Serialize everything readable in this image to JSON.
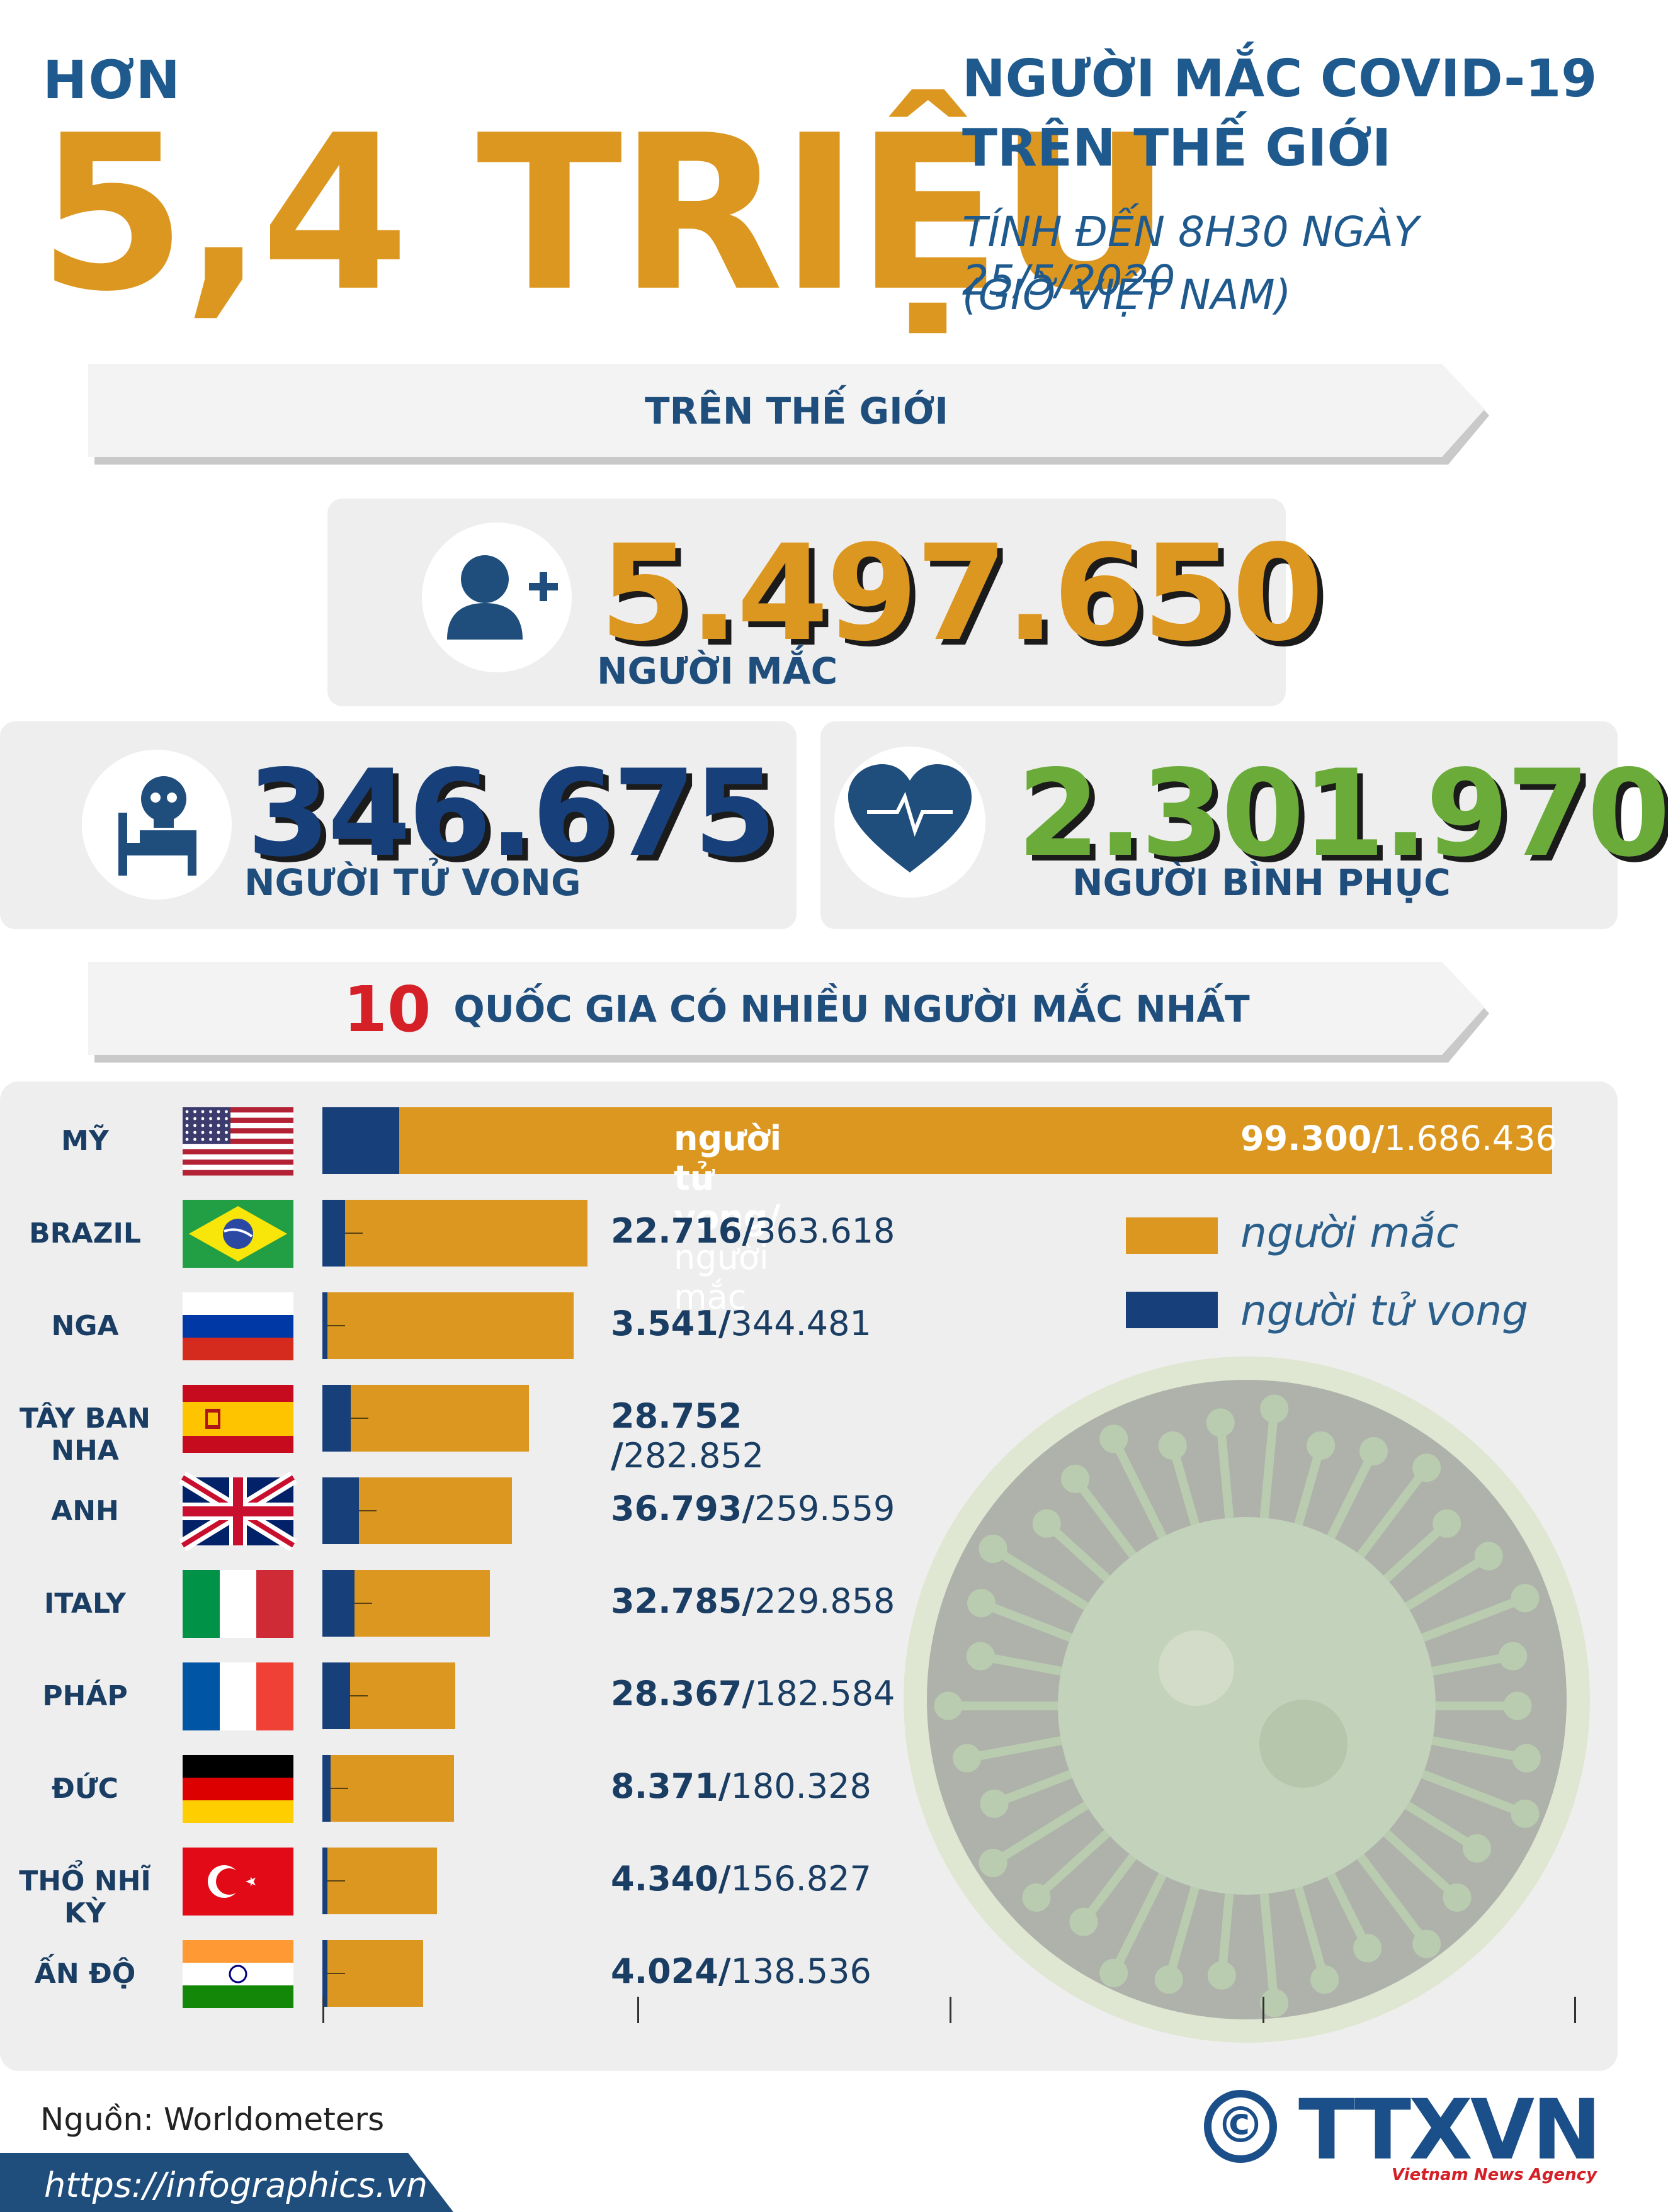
{
  "header": {
    "prefix": "HƠN",
    "big_number": "5,4 TRIỆU",
    "headline_line1": "NGƯỜI MẮC COVID-19",
    "headline_line2": "TRÊN THẾ GIỚI",
    "date_line1": "TÍNH ĐẾN 8H30 NGÀY 25/5/2020",
    "date_line2": "(GIỜ VIỆT NAM)"
  },
  "world_banner": {
    "label": "TRÊN THẾ GIỚI"
  },
  "stats": {
    "cases": {
      "value": "5.497.650",
      "label": "NGƯỜI MẮC",
      "color": "#dc9720"
    },
    "deaths": {
      "value": "346.675",
      "label": "NGƯỜI TỬ VONG",
      "color": "#173f7a"
    },
    "recovered": {
      "value": "2.301.970",
      "label": "NGƯỜI BÌNH PHỤC",
      "color": "#6aab3a"
    }
  },
  "top_banner": {
    "number": "10",
    "label": "QUỐC GIA CÓ NHIỀU NGƯỜI MẮC NHẤT"
  },
  "chart_data": {
    "type": "bar",
    "orientation": "horizontal",
    "categories": [
      "MỸ",
      "BRAZIL",
      "NGA",
      "TÂY BAN NHA",
      "ANH",
      "ITALY",
      "PHÁP",
      "ĐỨC",
      "THỔ NHĨ KỲ",
      "ẤN ĐỘ"
    ],
    "series": [
      {
        "name": "người mắc",
        "color": "#dc9720",
        "values": [
          1686436,
          363618,
          344481,
          282852,
          259559,
          229858,
          182584,
          180328,
          156827,
          138536
        ]
      },
      {
        "name": "người tử vong",
        "color": "#173f7a",
        "values": [
          99300,
          22716,
          3541,
          28752,
          36793,
          32785,
          28367,
          8371,
          4340,
          4024
        ]
      }
    ],
    "deaths_labels": [
      "99.300",
      "22.716",
      "3.541",
      "28.752 ",
      "36.793",
      "32.785",
      "28.367",
      "8.371",
      "4.340",
      "4.024"
    ],
    "cases_labels": [
      "1.686.436",
      "363.618",
      "344.481",
      "282.852",
      "259.559",
      "229.858",
      "182.584",
      "180.328",
      "156.827",
      "138.536"
    ],
    "bar_caption_bold": "người tử vong/",
    "bar_caption_rest": " người mắc",
    "legend_position": "right"
  },
  "footer": {
    "source": "Nguồn: Worldometers",
    "url": "https://infographics.vn",
    "copyright_symbol": "©",
    "logo": "TTXVN",
    "logo_subtitle": "Vietnam News Agency"
  }
}
